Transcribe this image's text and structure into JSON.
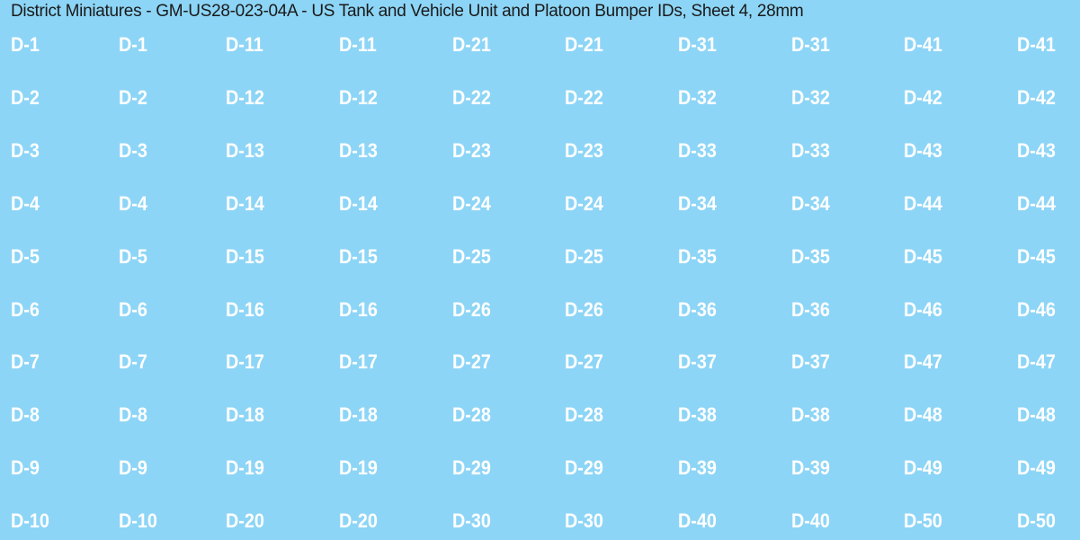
{
  "title": "District Miniatures - GM-US28-023-04A - US Tank and Vehicle Unit and Platoon Bumper IDs, Sheet 4, 28mm",
  "rows": [
    [
      "D-1",
      "D-1",
      "D-11",
      "D-11",
      "D-21",
      "D-21",
      "D-31",
      "D-31",
      "D-41",
      "D-41"
    ],
    [
      "D-2",
      "D-2",
      "D-12",
      "D-12",
      "D-22",
      "D-22",
      "D-32",
      "D-32",
      "D-42",
      "D-42"
    ],
    [
      "D-3",
      "D-3",
      "D-13",
      "D-13",
      "D-23",
      "D-23",
      "D-33",
      "D-33",
      "D-43",
      "D-43"
    ],
    [
      "D-4",
      "D-4",
      "D-14",
      "D-14",
      "D-24",
      "D-24",
      "D-34",
      "D-34",
      "D-44",
      "D-44"
    ],
    [
      "D-5",
      "D-5",
      "D-15",
      "D-15",
      "D-25",
      "D-25",
      "D-35",
      "D-35",
      "D-45",
      "D-45"
    ],
    [
      "D-6",
      "D-6",
      "D-16",
      "D-16",
      "D-26",
      "D-26",
      "D-36",
      "D-36",
      "D-46",
      "D-46"
    ],
    [
      "D-7",
      "D-7",
      "D-17",
      "D-17",
      "D-27",
      "D-27",
      "D-37",
      "D-37",
      "D-47",
      "D-47"
    ],
    [
      "D-8",
      "D-8",
      "D-18",
      "D-18",
      "D-28",
      "D-28",
      "D-38",
      "D-38",
      "D-48",
      "D-48"
    ],
    [
      "D-9",
      "D-9",
      "D-19",
      "D-19",
      "D-29",
      "D-29",
      "D-39",
      "D-39",
      "D-49",
      "D-49"
    ],
    [
      "D-10",
      "D-10",
      "D-20",
      "D-20",
      "D-30",
      "D-30",
      "D-40",
      "D-40",
      "D-50",
      "D-50"
    ]
  ]
}
